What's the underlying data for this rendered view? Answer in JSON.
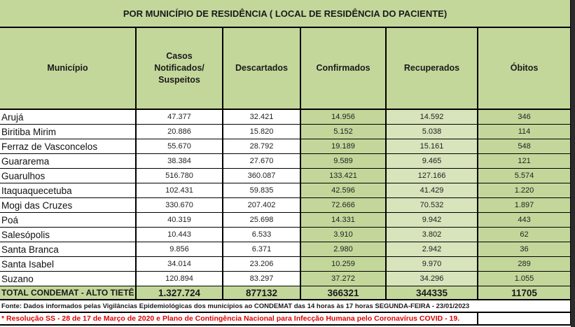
{
  "title": "POR MUNICÍPIO DE RESIDÊNCIA ( LOCAL DE RESIDÊNCIA DO PACIENTE)",
  "columns": [
    "Município",
    "Casos Notificados/ Suspeitos",
    "Descartados",
    "Confirmados",
    "Recuperados",
    "Óbitos"
  ],
  "colors": {
    "header_green": "#c4d79b",
    "light_green": "#d8e4bc",
    "note_red": "#e00000"
  },
  "rows": [
    {
      "municipio": "Arujá",
      "casos": "47.377",
      "descartados": "32.421",
      "confirmados": "14.956",
      "recuperados": "14.592",
      "obitos": "346"
    },
    {
      "municipio": "Biritiba Mirim",
      "casos": "20.886",
      "descartados": "15.820",
      "confirmados": "5.152",
      "recuperados": "5.038",
      "obitos": "114"
    },
    {
      "municipio": "Ferraz de Vasconcelos",
      "casos": "55.670",
      "descartados": "28.792",
      "confirmados": "19.189",
      "recuperados": "15.161",
      "obitos": "548"
    },
    {
      "municipio": "Guararema",
      "casos": "38.384",
      "descartados": "27.670",
      "confirmados": "9.589",
      "recuperados": "9.465",
      "obitos": "121"
    },
    {
      "municipio": "Guarulhos",
      "casos": "516.780",
      "descartados": "360.087",
      "confirmados": "133.421",
      "recuperados": "127.166",
      "obitos": "5.574"
    },
    {
      "municipio": "Itaquaquecetuba",
      "casos": "102.431",
      "descartados": "59.835",
      "confirmados": "42.596",
      "recuperados": "41.429",
      "obitos": "1.220"
    },
    {
      "municipio": "Mogi das Cruzes",
      "casos": "330.670",
      "descartados": "207.402",
      "confirmados": "72.666",
      "recuperados": "70.532",
      "obitos": "1.897"
    },
    {
      "municipio": "Poá",
      "casos": "40.319",
      "descartados": "25.698",
      "confirmados": "14.331",
      "recuperados": "9.942",
      "obitos": "443"
    },
    {
      "municipio": "Salesópolis",
      "casos": "10.443",
      "descartados": "6.533",
      "confirmados": "3.910",
      "recuperados": "3.802",
      "obitos": "62"
    },
    {
      "municipio": "Santa Branca",
      "casos": "9.856",
      "descartados": "6.371",
      "confirmados": "2.980",
      "recuperados": "2.942",
      "obitos": "36"
    },
    {
      "municipio": "Santa Isabel",
      "casos": "34.014",
      "descartados": "23.206",
      "confirmados": "10.259",
      "recuperados": "9.970",
      "obitos": "289"
    },
    {
      "municipio": "Suzano",
      "casos": "120.894",
      "descartados": "83.297",
      "confirmados": "37.272",
      "recuperados": "34.296",
      "obitos": "1.055"
    }
  ],
  "total": {
    "municipio": "TOTAL CONDEMAT - ALTO TIETÊ",
    "casos": "1.327.724",
    "descartados": "877132",
    "confirmados": "366321",
    "recuperados": "344335",
    "obitos": "11705"
  },
  "footer": {
    "source": "Fonte: Dados informados pelas Vigilâncias Epidemiológicas dos municípios ao CONDEMAT das 14 horas às 17 horas SEGUNDA-FEIRA - 23/01/2023",
    "note": "* Resolução SS - 28 de 17 de Março de 2020 e Plano de Contingência Nacional para Infecção Humana pelo Coronavírus COVID - 19."
  }
}
